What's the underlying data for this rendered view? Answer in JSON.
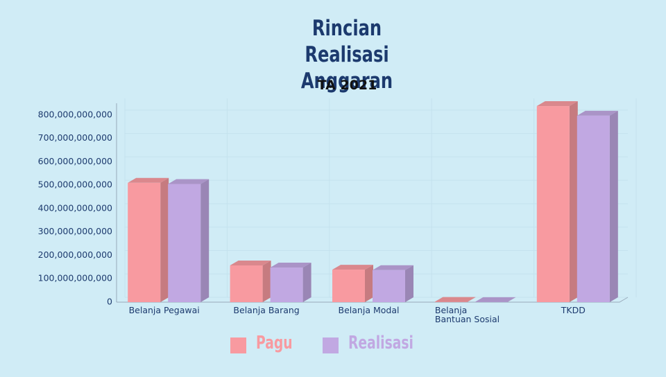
{
  "chart_data": {
    "type": "bar3d",
    "title": "Rincian Realisasi Anggaran",
    "subtitle": "TA 2021",
    "categories": [
      "Belanja Pegawai",
      "Belanja Barang",
      "Belanja Modal",
      "Belanja Bantuan Sosial",
      "TKDD"
    ],
    "series": [
      {
        "name": "Pagu",
        "color": "#f89aa0",
        "values": [
          510000000000,
          157000000000,
          139000000000,
          1000000000,
          838000000000
        ]
      },
      {
        "name": "Realisasi",
        "color": "#c1a8e2",
        "values": [
          505000000000,
          148000000000,
          137000000000,
          500000000,
          797000000000
        ]
      }
    ],
    "ylim": [
      0,
      850000000000
    ],
    "yticks": [
      {
        "value": 0,
        "label": "0"
      },
      {
        "value": 100000000000,
        "label": "100,000,000,000"
      },
      {
        "value": 200000000000,
        "label": "200,000,000,000"
      },
      {
        "value": 300000000000,
        "label": "300,000,000,000"
      },
      {
        "value": 400000000000,
        "label": "400,000,000,000"
      },
      {
        "value": 500000000000,
        "label": "500,000,000,000"
      },
      {
        "value": 600000000000,
        "label": "600,000,000,000"
      },
      {
        "value": 700000000000,
        "label": "700,000,000,000"
      },
      {
        "value": 800000000000,
        "label": "800,000,000,000"
      }
    ],
    "grid": true
  }
}
